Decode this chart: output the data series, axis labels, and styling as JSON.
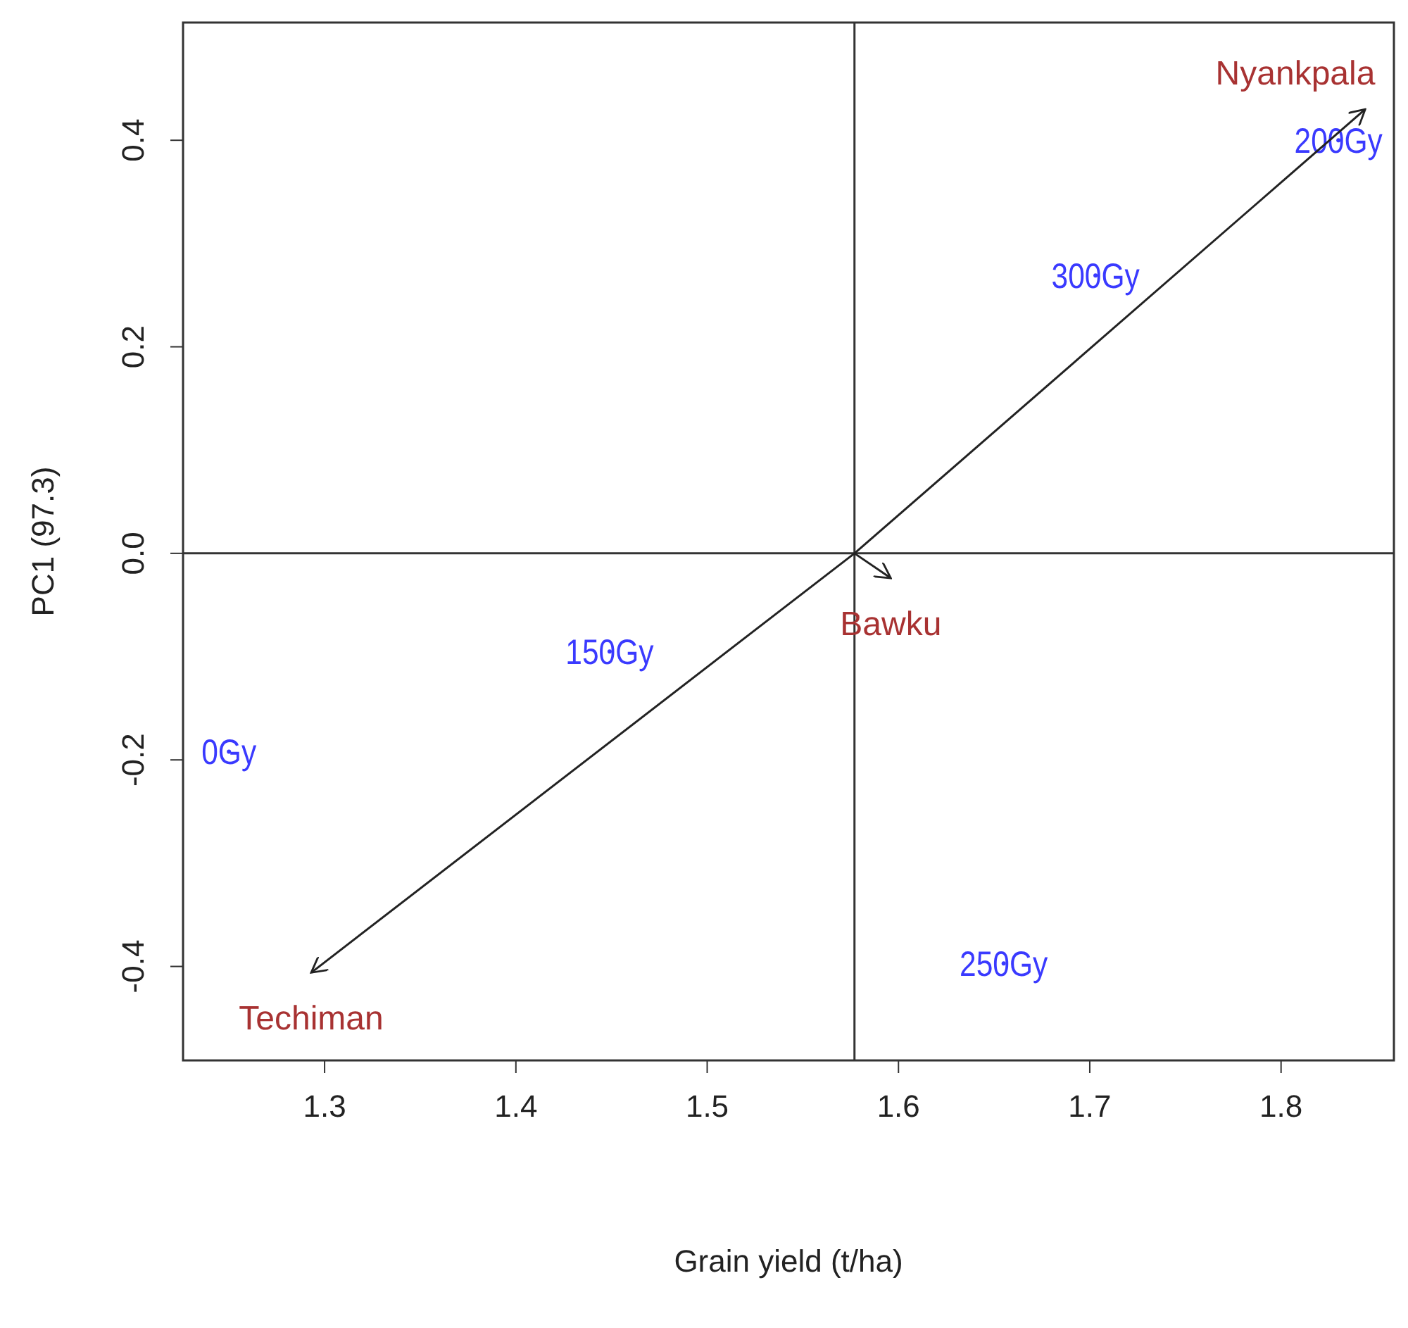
{
  "chart_data": {
    "type": "scatter",
    "xlabel": "Grain yield (t/ha)",
    "ylabel": "PC1 (97.3)",
    "xlim": [
      1.226,
      1.859
    ],
    "ylim": [
      -0.491,
      0.514
    ],
    "xticks": [
      1.3,
      1.4,
      1.5,
      1.6,
      1.7,
      1.8
    ],
    "yticks": [
      -0.4,
      -0.2,
      {
        "value": 0,
        "label": "0.0"
      },
      0.2,
      0.4
    ],
    "grid": false,
    "series": [
      {
        "name": "0Gy",
        "color": "#3a3aff",
        "marker": "circle",
        "x": [
          1.25
        ],
        "values": [
          -0.192
        ]
      },
      {
        "name": "150Gy",
        "color": "#3a3aff",
        "marker": "circle",
        "x": [
          1.449
        ],
        "values": [
          -0.095
        ]
      },
      {
        "name": "300Gy",
        "color": "#3a3aff",
        "marker": "circle",
        "x": [
          1.703
        ],
        "values": [
          0.269
        ]
      },
      {
        "name": "200Gy",
        "color": "#3a3aff",
        "marker": "circle",
        "x": [
          1.83
        ],
        "values": [
          0.4
        ]
      },
      {
        "name": "250Gy",
        "color": "#3a3aff",
        "marker": "circle",
        "x": [
          1.655
        ],
        "values": [
          -0.397
        ]
      },
      {
        "type": "line",
        "name": "Nyankpala",
        "color": "#222222",
        "x": [
          1.577,
          1.844
        ],
        "values": [
          0,
          0.43
        ]
      },
      {
        "type": "line",
        "name": "Bawku",
        "color": "#222222",
        "x": [
          1.577,
          1.596
        ],
        "values": [
          0,
          -0.024
        ]
      },
      {
        "type": "line",
        "name": "Techiman",
        "color": "#222222",
        "x": [
          1.577,
          1.293
        ],
        "values": [
          0,
          -0.406
        ]
      }
    ],
    "ref_lines": [
      {
        "axis": "x",
        "value": 1.577,
        "color": "#333333"
      },
      {
        "axis": "y",
        "value": 0,
        "color": "#333333"
      }
    ]
  }
}
